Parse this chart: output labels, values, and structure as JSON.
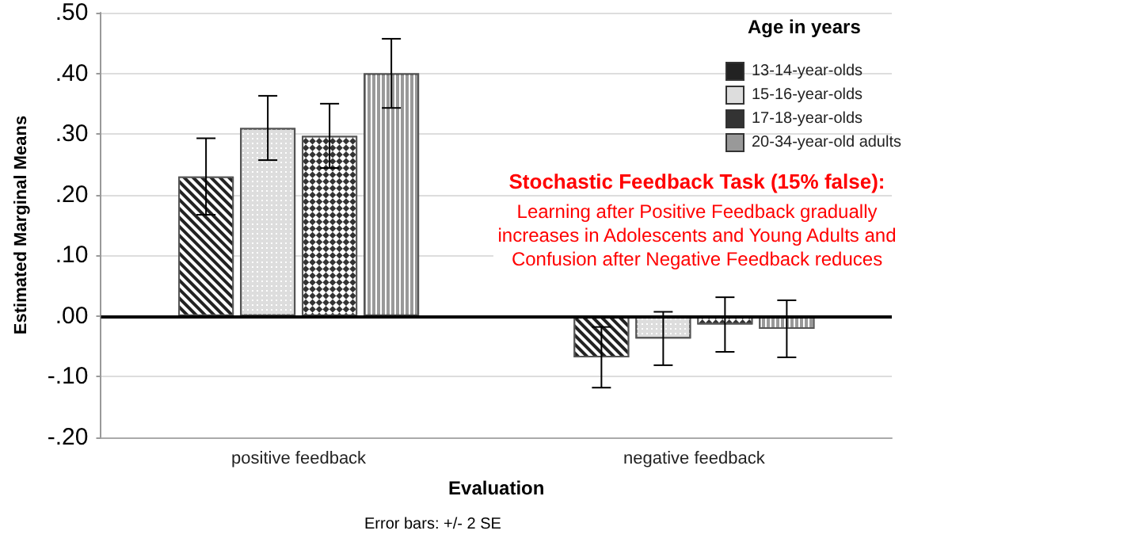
{
  "chart_data": {
    "type": "bar",
    "categories": [
      "positive feedback",
      "negative feedback"
    ],
    "xlabel": "Evaluation",
    "ylabel": "Estimated Marginal Means",
    "legend_title": "Age in years",
    "series": [
      {
        "name": "13-14-year-olds",
        "color": "#222222",
        "values": [
          0.23,
          -0.068
        ],
        "errors": [
          0.063,
          0.05
        ]
      },
      {
        "name": "15-16-year-olds",
        "color": "#dddddd",
        "values": [
          0.31,
          -0.037
        ],
        "errors": [
          0.053,
          0.044
        ]
      },
      {
        "name": "17-18-year-olds",
        "color": "#333333",
        "values": [
          0.297,
          -0.014
        ],
        "errors": [
          0.053,
          0.045
        ]
      },
      {
        "name": "20-34-year-old adults",
        "color": "#999999",
        "values": [
          0.4,
          -0.021
        ],
        "errors": [
          0.057,
          0.047
        ]
      }
    ],
    "ylim": [
      -0.2,
      0.5
    ],
    "yticks": [
      {
        "value": -0.2,
        "label": "-.20"
      },
      {
        "value": -0.1,
        "label": "-.10"
      },
      {
        "value": 0,
        "label": ".00"
      },
      {
        "value": 0.1,
        "label": ".10"
      },
      {
        "value": 0.2,
        "label": ".20"
      },
      {
        "value": 0.3,
        "label": ".30"
      },
      {
        "value": 0.4,
        "label": ".40"
      },
      {
        "value": 0.5,
        "label": ".50"
      }
    ],
    "ref_lines": [
      {
        "axis": "y",
        "value": 0,
        "color": "#000000"
      }
    ],
    "grid": "y",
    "legend": "top right",
    "annotations": [
      "Stochastic Feedback Task (15% false):",
      "Learning after Positive Feedback gradually\nincreases in Adolescents and Young Adults and\nConfusion after Negative Feedback reduces",
      "Error bars: +/- 2 SE"
    ]
  }
}
